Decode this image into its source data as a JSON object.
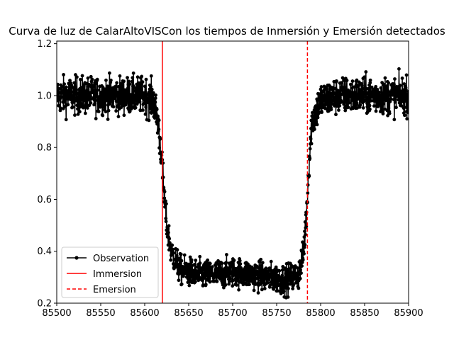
{
  "chart_data": {
    "type": "line",
    "title": "Curva de luz de CalarAltoVISCon los tiempos de Inmersión y Emersión detectados",
    "xlabel": "",
    "ylabel": "",
    "xlim": [
      85500,
      85900
    ],
    "ylim": [
      0.2,
      1.21
    ],
    "xticks": [
      85500,
      85550,
      85600,
      85650,
      85700,
      85750,
      85800,
      85850,
      85900
    ],
    "yticks": [
      0.2,
      0.4,
      0.6,
      0.8,
      1.0,
      1.2
    ],
    "grid": false,
    "legend_position": "lower-left",
    "series": [
      {
        "name": "Observation",
        "style": "line-with-markers",
        "color": "#000000",
        "x": [
          85500,
          85520,
          85540,
          85560,
          85580,
          85600,
          85610,
          85615,
          85618,
          85620,
          85622,
          85625,
          85630,
          85640,
          85660,
          85680,
          85700,
          85720,
          85740,
          85760,
          85775,
          85780,
          85783,
          85785,
          85787,
          85790,
          85800,
          85820,
          85840,
          85860,
          85880,
          85900
        ],
        "y": [
          1.0,
          1.0,
          1.0,
          1.0,
          1.0,
          1.0,
          0.98,
          0.9,
          0.8,
          0.72,
          0.62,
          0.5,
          0.4,
          0.33,
          0.31,
          0.31,
          0.32,
          0.31,
          0.3,
          0.29,
          0.31,
          0.38,
          0.5,
          0.62,
          0.75,
          0.9,
          0.98,
          1.0,
          1.0,
          1.0,
          1.0,
          1.0
        ],
        "noise": 0.035
      },
      {
        "name": "Immersion",
        "style": "solid-vline",
        "color": "#ff0000",
        "x": 85620
      },
      {
        "name": "Emersion",
        "style": "dashed-vline",
        "color": "#ff0000",
        "x": 85785
      }
    ]
  }
}
